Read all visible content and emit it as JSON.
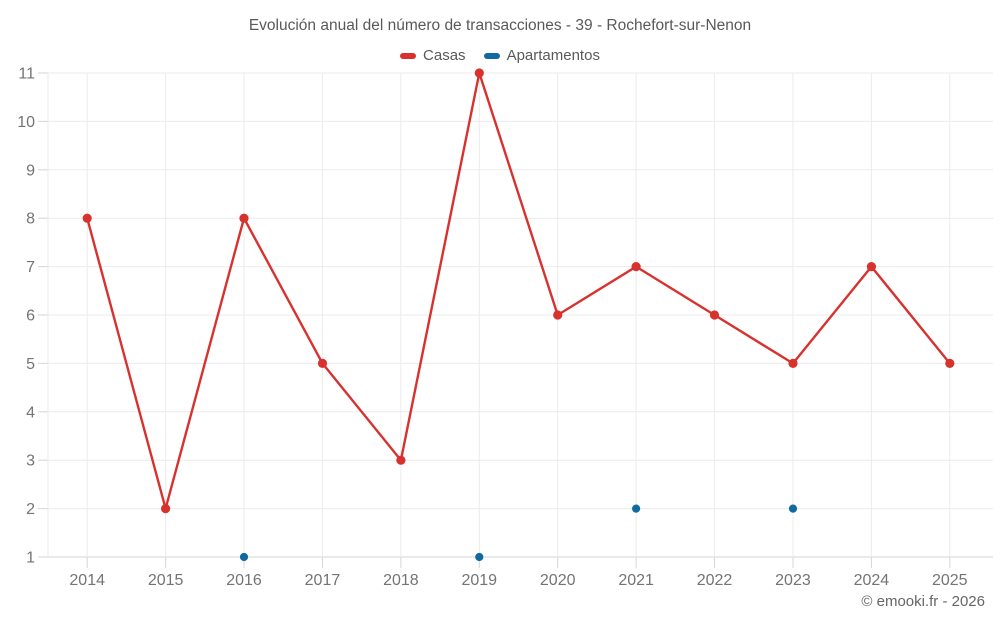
{
  "title": "Evolución anual del número de transacciones - 39 - Rochefort-sur-Nenon",
  "footer": "© emooki.fr - 2026",
  "colors": {
    "casas_red": "#d8322f",
    "apartamentos_blue": "#1169a2",
    "grid": "#ebebeb",
    "axis": "#d6d6d6",
    "tick_label": "#747474",
    "title_text": "#58595b"
  },
  "chart_data": {
    "type": "line",
    "title": "Evolución anual del número de transacciones - 39 - Rochefort-sur-Nenon",
    "categories": [
      "2014",
      "2015",
      "2016",
      "2017",
      "2018",
      "2019",
      "2020",
      "2021",
      "2022",
      "2023",
      "2024",
      "2025"
    ],
    "series": [
      {
        "name": "Casas",
        "color": "#d8322f",
        "line": true,
        "values": [
          8,
          2,
          8,
          5,
          3,
          11,
          6,
          7,
          6,
          5,
          7,
          5
        ]
      },
      {
        "name": "Apartamentos",
        "color": "#1169a2",
        "line": false,
        "values": [
          null,
          null,
          1,
          null,
          null,
          1,
          null,
          2,
          null,
          2,
          null,
          null
        ]
      }
    ],
    "xlabel": "",
    "ylabel": "",
    "ylim": [
      1,
      11
    ],
    "yticks": [
      1,
      2,
      3,
      4,
      5,
      6,
      7,
      8,
      9,
      10,
      11
    ],
    "grid": true,
    "legend_position": "top"
  }
}
